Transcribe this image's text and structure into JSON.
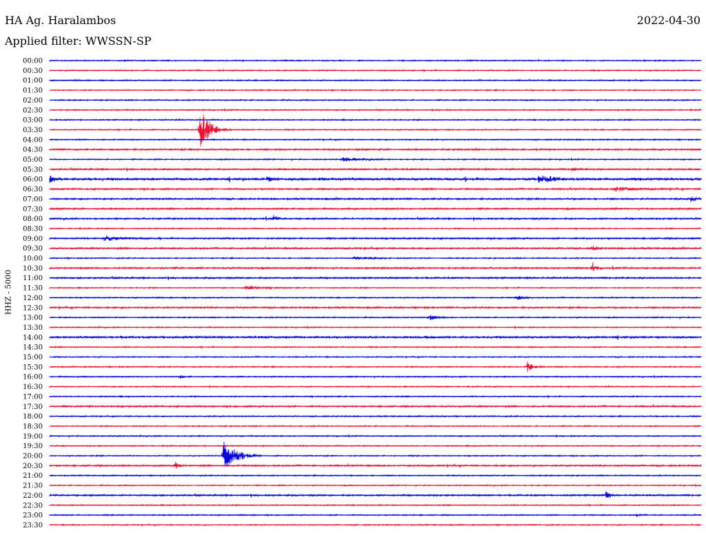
{
  "header": {
    "station": "HA Ag. Haralambos",
    "date": "2022-04-30",
    "filter": "Applied filter: WWSSN-SP",
    "channel": "HHZ - 5000"
  },
  "colors": {
    "blue": "#0000e0",
    "red": "#ee1133"
  },
  "chart_data": {
    "type": "line",
    "title": "HA Ag. Haralambos",
    "subtitle": "Applied filter: WWSSN-SP",
    "ylabel": "HHZ - 5000",
    "xlabel": "",
    "traces": [
      "00:00",
      "00:30",
      "01:00",
      "01:30",
      "02:00",
      "02:30",
      "03:00",
      "03:30",
      "04:00",
      "04:30",
      "05:00",
      "05:30",
      "06:00",
      "06:30",
      "07:00",
      "07:30",
      "08:00",
      "08:30",
      "09:00",
      "09:30",
      "10:00",
      "10:30",
      "11:00",
      "11:30",
      "12:00",
      "12:30",
      "13:00",
      "13:30",
      "14:00",
      "14:30",
      "15:00",
      "15:30",
      "16:00",
      "16:30",
      "17:00",
      "17:30",
      "18:00",
      "18:30",
      "19:00",
      "19:30",
      "20:00",
      "20:30",
      "21:00",
      "21:30",
      "22:00",
      "22:30",
      "23:00",
      "23:30"
    ],
    "trace_colors": [
      "blue",
      "red"
    ],
    "trace_duration_min": 30,
    "noise_level": [
      1,
      1,
      1,
      1,
      1,
      1,
      1,
      1,
      1,
      1.5,
      1,
      1.5,
      2.5,
      1.5,
      1.5,
      1.5,
      1.5,
      1,
      1.5,
      1.5,
      1,
      1.5,
      1.5,
      1,
      1,
      1.5,
      1,
      1,
      2,
      1,
      1,
      1,
      1,
      1,
      1,
      1.5,
      1,
      1,
      1,
      1,
      1,
      1.5,
      1,
      1,
      1.5,
      1,
      1,
      1
    ],
    "events": [
      {
        "trace": "03:30",
        "minute": 6.9,
        "amplitude": 32,
        "duration_min": 1.0,
        "color": "red"
      },
      {
        "trace": "20:00",
        "minute": 8.0,
        "amplitude": 22,
        "duration_min": 1.2,
        "color": "blue"
      },
      {
        "trace": "20:30",
        "minute": 5.8,
        "amplitude": 6,
        "duration_min": 0.3,
        "color": "red"
      },
      {
        "trace": "22:00",
        "minute": 25.6,
        "amplitude": 8,
        "duration_min": 0.3,
        "color": "blue"
      },
      {
        "trace": "10:30",
        "minute": 25.0,
        "amplitude": 9,
        "duration_min": 0.3,
        "color": "red"
      },
      {
        "trace": "09:30",
        "minute": 25.0,
        "amplitude": 5,
        "duration_min": 0.4,
        "color": "red"
      },
      {
        "trace": "15:30",
        "minute": 22.0,
        "amplitude": 7,
        "duration_min": 0.5,
        "color": "red"
      },
      {
        "trace": "09:00",
        "minute": 2.5,
        "amplitude": 4,
        "duration_min": 1.4,
        "color": "blue"
      },
      {
        "trace": "06:00",
        "minute": 22.5,
        "amplitude": 5,
        "duration_min": 1.6,
        "color": "blue"
      },
      {
        "trace": "06:00",
        "minute": 10.0,
        "amplitude": 4,
        "duration_min": 0.6,
        "color": "blue"
      },
      {
        "trace": "06:00",
        "minute": 0.0,
        "amplitude": 5,
        "duration_min": 0.4,
        "color": "blue"
      },
      {
        "trace": "06:30",
        "minute": 26.0,
        "amplitude": 4,
        "duration_min": 1.8,
        "color": "red"
      },
      {
        "trace": "05:00",
        "minute": 13.5,
        "amplitude": 3,
        "duration_min": 1.5,
        "color": "blue"
      },
      {
        "trace": "05:30",
        "minute": 24.0,
        "amplitude": 3,
        "duration_min": 0.6,
        "color": "red"
      },
      {
        "trace": "07:00",
        "minute": 29.5,
        "amplitude": 4,
        "duration_min": 0.8,
        "color": "blue"
      },
      {
        "trace": "08:00",
        "minute": 10.3,
        "amplitude": 5,
        "duration_min": 0.4,
        "color": "blue"
      },
      {
        "trace": "10:00",
        "minute": 14.0,
        "amplitude": 3,
        "duration_min": 1.2,
        "color": "blue"
      },
      {
        "trace": "11:30",
        "minute": 9.0,
        "amplitude": 3,
        "duration_min": 1.4,
        "color": "red"
      },
      {
        "trace": "12:00",
        "minute": 21.5,
        "amplitude": 4,
        "duration_min": 0.6,
        "color": "blue"
      },
      {
        "trace": "13:00",
        "minute": 17.5,
        "amplitude": 4,
        "duration_min": 0.8,
        "color": "blue"
      },
      {
        "trace": "16:00",
        "minute": 6.0,
        "amplitude": 3,
        "duration_min": 0.4,
        "color": "blue"
      },
      {
        "trace": "19:30",
        "minute": 0.0,
        "amplitude": 0,
        "duration_min": 0,
        "color": "red"
      },
      {
        "trace": "23:00",
        "minute": 27.0,
        "amplitude": 2,
        "duration_min": 0.3,
        "color": "blue"
      }
    ]
  }
}
